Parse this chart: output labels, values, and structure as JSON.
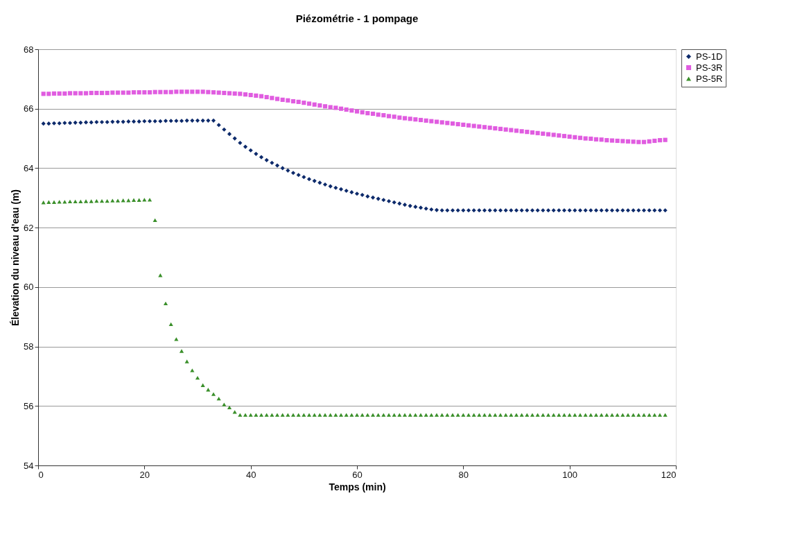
{
  "chart_data": {
    "type": "scatter",
    "title": "Piézométrie - 1 pompage",
    "xlabel": "Temps (min)",
    "ylabel": "Élevation du niveau d'eau (m)",
    "x": [
      1,
      2,
      3,
      4,
      5,
      6,
      7,
      8,
      9,
      10,
      11,
      12,
      13,
      14,
      15,
      16,
      17,
      18,
      19,
      20,
      21,
      22,
      23,
      24,
      25,
      26,
      27,
      28,
      29,
      30,
      31,
      32,
      33,
      34,
      35,
      36,
      37,
      38,
      39,
      40,
      41,
      42,
      43,
      44,
      45,
      46,
      47,
      48,
      49,
      50,
      51,
      52,
      53,
      54,
      55,
      56,
      57,
      58,
      59,
      60,
      61,
      62,
      63,
      64,
      65,
      66,
      67,
      68,
      69,
      70,
      71,
      72,
      73,
      74,
      75,
      76,
      77,
      78,
      79,
      80,
      81,
      82,
      83,
      84,
      85,
      86,
      87,
      88,
      89,
      90,
      91,
      92,
      93,
      94,
      95,
      96,
      97,
      98,
      99,
      100,
      101,
      102,
      103,
      104,
      105,
      106,
      107,
      108,
      109,
      110,
      111,
      112,
      113,
      114,
      115,
      116,
      117,
      118
    ],
    "series": [
      {
        "name": "PS-1D",
        "color": "#0d2a6b",
        "marker": "diamond",
        "values": [
          65.5,
          65.5,
          65.51,
          65.51,
          65.52,
          65.52,
          65.53,
          65.53,
          65.54,
          65.54,
          65.55,
          65.55,
          65.55,
          65.56,
          65.56,
          65.56,
          65.57,
          65.57,
          65.57,
          65.58,
          65.58,
          65.58,
          65.58,
          65.59,
          65.59,
          65.59,
          65.59,
          65.6,
          65.6,
          65.6,
          65.6,
          65.6,
          65.6,
          65.45,
          65.3,
          65.15,
          65.0,
          64.85,
          64.72,
          64.6,
          64.48,
          64.37,
          64.27,
          64.18,
          64.09,
          64.0,
          63.92,
          63.84,
          63.77,
          63.7,
          63.63,
          63.57,
          63.51,
          63.45,
          63.39,
          63.34,
          63.29,
          63.24,
          63.19,
          63.14,
          63.1,
          63.05,
          63.01,
          62.97,
          62.93,
          62.89,
          62.85,
          62.81,
          62.77,
          62.73,
          62.7,
          62.67,
          62.64,
          62.61,
          62.59,
          62.58,
          62.58,
          62.58,
          62.58,
          62.58,
          62.58,
          62.58,
          62.58,
          62.58,
          62.58,
          62.58,
          62.58,
          62.58,
          62.58,
          62.58,
          62.58,
          62.58,
          62.58,
          62.58,
          62.58,
          62.58,
          62.58,
          62.58,
          62.58,
          62.58,
          62.58,
          62.58,
          62.58,
          62.58,
          62.58,
          62.58,
          62.58,
          62.58,
          62.58,
          62.58,
          62.58,
          62.58,
          62.58,
          62.58,
          62.58,
          62.58,
          62.58,
          62.58
        ]
      },
      {
        "name": "PS-3R",
        "color": "#e05ce0",
        "marker": "square",
        "values": [
          66.5,
          66.5,
          66.51,
          66.51,
          66.51,
          66.52,
          66.52,
          66.52,
          66.52,
          66.53,
          66.53,
          66.53,
          66.53,
          66.54,
          66.54,
          66.54,
          66.54,
          66.55,
          66.55,
          66.55,
          66.55,
          66.56,
          66.56,
          66.56,
          66.56,
          66.57,
          66.57,
          66.57,
          66.57,
          66.57,
          66.57,
          66.56,
          66.55,
          66.54,
          66.53,
          66.52,
          66.51,
          66.5,
          66.48,
          66.46,
          66.44,
          66.42,
          66.39,
          66.36,
          66.33,
          66.3,
          66.28,
          66.25,
          66.23,
          66.2,
          66.17,
          66.14,
          66.11,
          66.08,
          66.05,
          66.03,
          66.0,
          65.97,
          65.94,
          65.91,
          65.88,
          65.85,
          65.83,
          65.8,
          65.78,
          65.75,
          65.73,
          65.7,
          65.68,
          65.66,
          65.64,
          65.62,
          65.6,
          65.58,
          65.56,
          65.54,
          65.52,
          65.5,
          65.48,
          65.46,
          65.44,
          65.42,
          65.4,
          65.38,
          65.36,
          65.34,
          65.32,
          65.3,
          65.28,
          65.26,
          65.24,
          65.22,
          65.2,
          65.18,
          65.16,
          65.14,
          65.12,
          65.1,
          65.08,
          65.06,
          65.04,
          65.02,
          65.0,
          64.99,
          64.97,
          64.96,
          64.94,
          64.93,
          64.92,
          64.91,
          64.9,
          64.89,
          64.88,
          64.88,
          64.9,
          64.92,
          64.94,
          64.95
        ]
      },
      {
        "name": "PS-5R",
        "color": "#3a8f2a",
        "marker": "triangle",
        "values": [
          62.85,
          62.86,
          62.86,
          62.87,
          62.87,
          62.88,
          62.88,
          62.88,
          62.89,
          62.89,
          62.9,
          62.9,
          62.9,
          62.91,
          62.91,
          62.92,
          62.92,
          62.93,
          62.93,
          62.94,
          62.94,
          62.25,
          60.4,
          59.45,
          58.75,
          58.25,
          57.85,
          57.5,
          57.2,
          56.95,
          56.7,
          56.55,
          56.4,
          56.25,
          56.05,
          55.95,
          55.8,
          55.7,
          55.7,
          55.7,
          55.7,
          55.7,
          55.7,
          55.7,
          55.7,
          55.7,
          55.7,
          55.7,
          55.7,
          55.7,
          55.7,
          55.7,
          55.7,
          55.7,
          55.7,
          55.7,
          55.7,
          55.7,
          55.7,
          55.7,
          55.7,
          55.7,
          55.7,
          55.7,
          55.7,
          55.7,
          55.7,
          55.7,
          55.7,
          55.7,
          55.7,
          55.7,
          55.7,
          55.7,
          55.7,
          55.7,
          55.7,
          55.7,
          55.7,
          55.7,
          55.7,
          55.7,
          55.7,
          55.7,
          55.7,
          55.7,
          55.7,
          55.7,
          55.7,
          55.7,
          55.7,
          55.7,
          55.7,
          55.7,
          55.7,
          55.7,
          55.7,
          55.7,
          55.7,
          55.7,
          55.7,
          55.7,
          55.7,
          55.7,
          55.7,
          55.7,
          55.7,
          55.7,
          55.7,
          55.7,
          55.7,
          55.7,
          55.7,
          55.7,
          55.7,
          55.7,
          55.7,
          55.7
        ]
      }
    ],
    "xlim": [
      0,
      120
    ],
    "xticks": [
      0,
      20,
      40,
      60,
      80,
      100,
      120
    ],
    "ylim": [
      54,
      68
    ],
    "yticks": [
      54,
      56,
      58,
      60,
      62,
      64,
      66,
      68
    ],
    "grid": "y",
    "legend": "right"
  }
}
